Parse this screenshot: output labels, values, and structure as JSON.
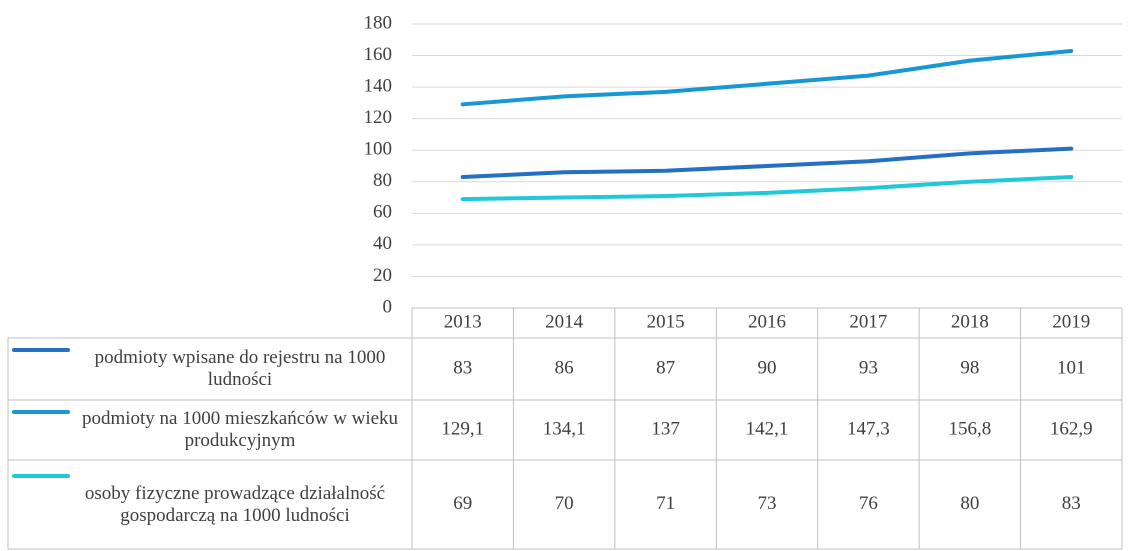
{
  "chart_data": {
    "type": "line",
    "categories": [
      "2013",
      "2014",
      "2015",
      "2016",
      "2017",
      "2018",
      "2019"
    ],
    "series": [
      {
        "name": "podmioty wpisane do rejestru na 1000 ludności",
        "color": "#2470c2",
        "values": [
          83,
          86,
          87,
          90,
          93,
          98,
          101
        ]
      },
      {
        "name": "podmioty na 1000 mieszkańców w wieku produkcyjnym",
        "color": "#1997d5",
        "values": [
          129.1,
          134.1,
          137,
          142.1,
          147.3,
          156.8,
          162.9
        ],
        "value_labels": [
          "129,1",
          "134,1",
          "137",
          "142,1",
          "147,3",
          "156,8",
          "162,9"
        ]
      },
      {
        "name": "osoby fizyczne prowadzące działalność gospodarczą na 1000 ludności",
        "color": "#21c8d8",
        "values": [
          69,
          70,
          71,
          73,
          76,
          80,
          83
        ]
      }
    ],
    "ylim": [
      0,
      180
    ],
    "yticks": [
      0,
      20,
      40,
      60,
      80,
      100,
      120,
      140,
      160,
      180
    ],
    "grid": true
  }
}
